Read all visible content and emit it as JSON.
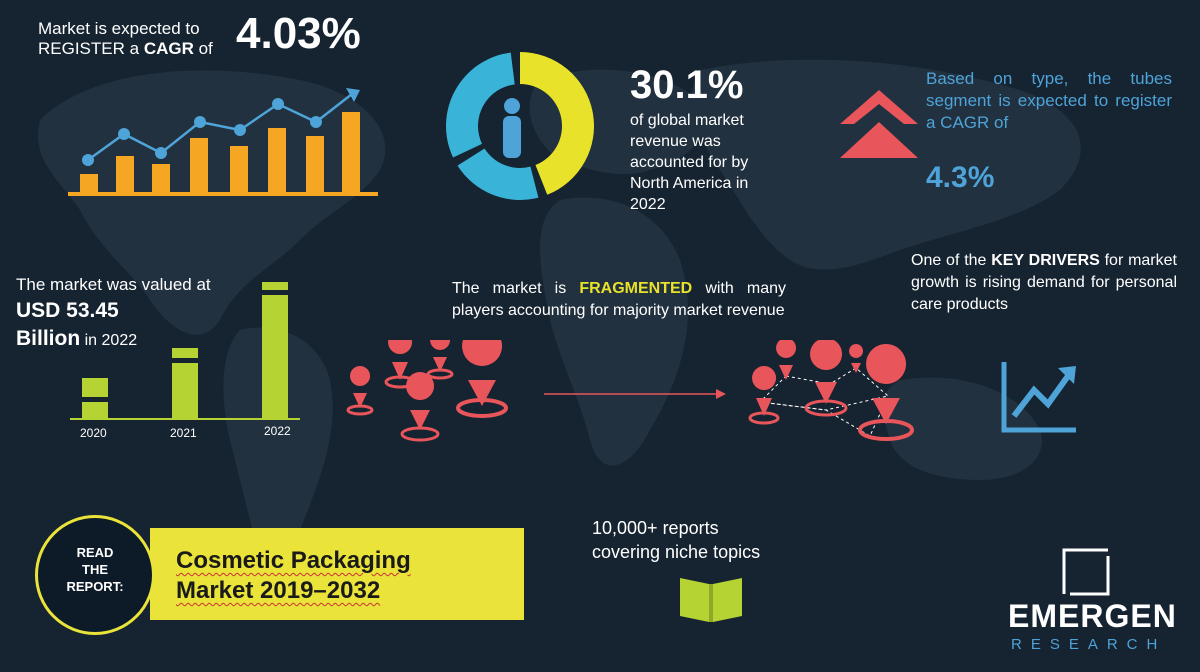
{
  "cagr_block": {
    "line1": "Market is expected to",
    "line2_prefix": "REGISTER a ",
    "line2_bold": "CAGR",
    "line2_suffix": " of",
    "value": "4.03%"
  },
  "north_america": {
    "value": "30.1%",
    "description": "of global market revenue was accounted for by North America in 2022",
    "share": 0.301
  },
  "tubes": {
    "text": "Based on type, the tubes segment is expected to register a CAGR of",
    "value": "4.3%"
  },
  "valuation": {
    "line1": "The market was valued at",
    "value_line1": "USD 53.45",
    "value_line2": "Billion",
    "year_suffix": " in 2022"
  },
  "bar_years": [
    "2020",
    "2021",
    "2022"
  ],
  "fragmented": {
    "prefix": "The market is ",
    "highlight": "FRAGMENTED",
    "suffix": " with many players accounting for majority market revenue"
  },
  "drivers": {
    "prefix": "One of the ",
    "highlight": "KEY DRIVERS",
    "suffix": " for market growth is rising demand for personal care products"
  },
  "reports": {
    "line1": "10,000+ reports",
    "line2": "covering niche topics"
  },
  "read_report": {
    "label_line1": "READ",
    "label_line2": "THE",
    "label_line3": "REPORT:",
    "title_line1": "Cosmetic Packaging",
    "title_line2": "Market 2019–2032"
  },
  "brand": {
    "name": "EMERGEN",
    "sub": "RESEARCH"
  },
  "colors": {
    "background": "#162330",
    "yellow": "#e9e33a",
    "orange": "#f5a623",
    "blue": "#4ea3d8",
    "red": "#e8555a",
    "lime": "#b6d334"
  }
}
